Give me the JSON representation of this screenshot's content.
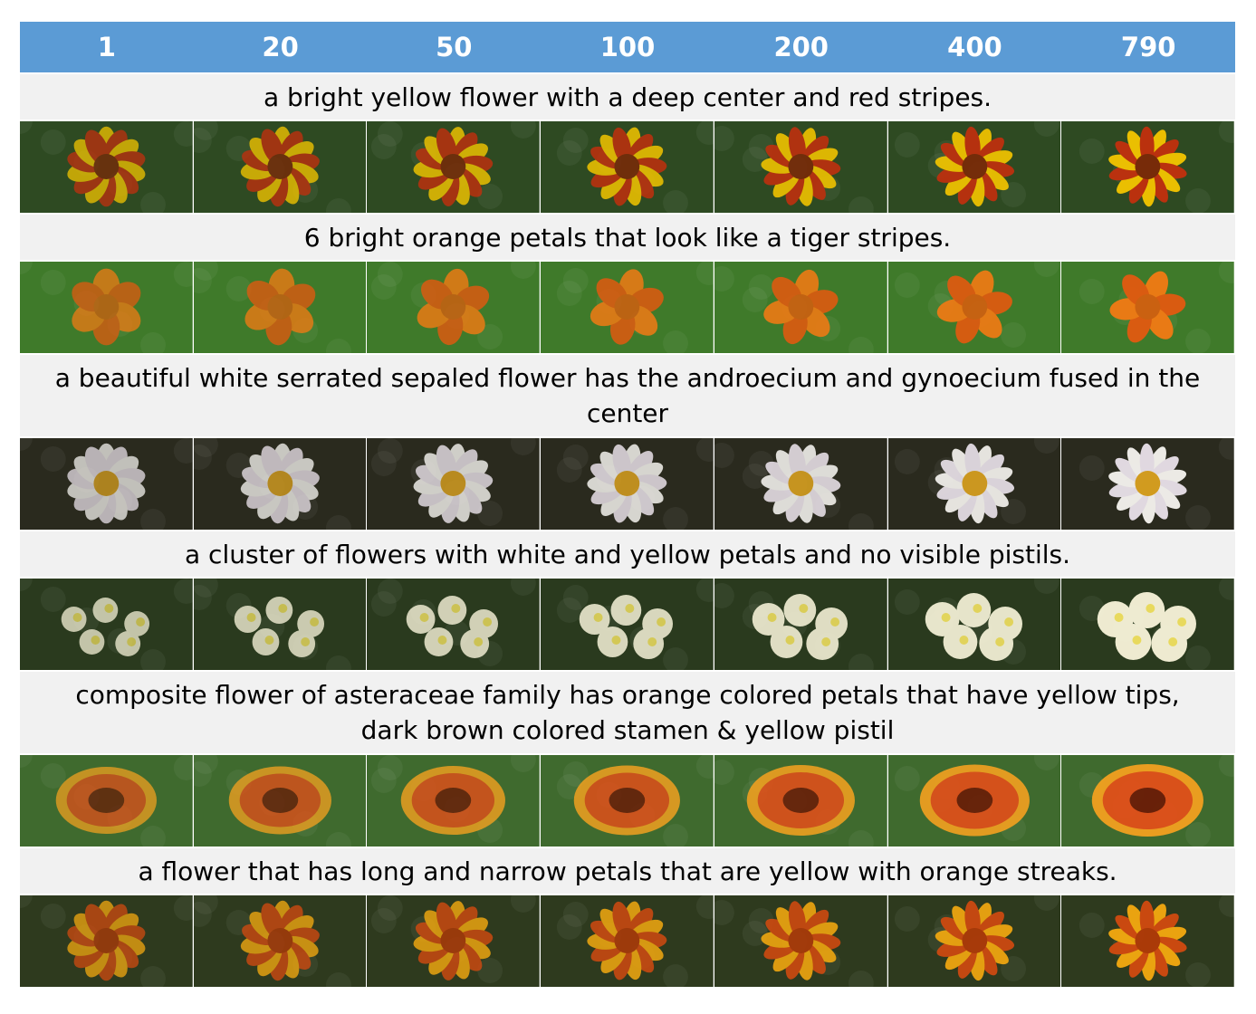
{
  "header": {
    "steps": [
      "1",
      "20",
      "50",
      "100",
      "200",
      "400",
      "790"
    ]
  },
  "rows": [
    {
      "caption": "a bright yellow flower with a deep center and red stripes.",
      "lines": 1,
      "bg": "#2e4a22",
      "petal": "#f2c400",
      "accent": "#c0300e",
      "center": "#7a2a08",
      "shape": "daisy"
    },
    {
      "caption": "6 bright orange petals that look like a tiger stripes.",
      "lines": 1,
      "bg": "#3f7a2a",
      "petal": "#f07a14",
      "accent": "#e05a10",
      "center": "#d06010",
      "shape": "star"
    },
    {
      "caption": "a beautiful white serrated sepaled flower has the androecium and gynoecium fused in the center",
      "lines": 2,
      "bg": "#2a2a1e",
      "petal": "#f4f2ee",
      "accent": "#e8e0e8",
      "center": "#d8a020",
      "shape": "daisy"
    },
    {
      "caption": "a cluster of flowers with white and yellow petals and no visible pistils.",
      "lines": 1,
      "bg": "#2a3a1e",
      "petal": "#f6f2d8",
      "accent": "#f0e060",
      "center": "#e8d040",
      "shape": "cluster"
    },
    {
      "caption": "composite flower of asteraceae family has orange colored petals that have yellow tips, dark brown colored stamen & yellow pistil",
      "lines": 2,
      "bg": "#3f6a2e",
      "petal": "#e0501a",
      "accent": "#f0a020",
      "center": "#6a1e08",
      "shape": "round"
    },
    {
      "caption": "a flower that has long and narrow petals that are yellow with orange streaks.",
      "lines": 1,
      "bg": "#2e3a1e",
      "petal": "#f2a810",
      "accent": "#d04a10",
      "center": "#b03a08",
      "shape": "daisy"
    }
  ]
}
